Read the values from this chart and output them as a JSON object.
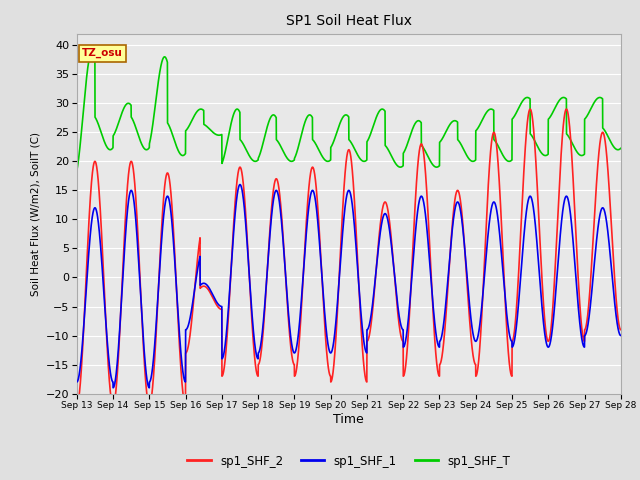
{
  "title": "SP1 Soil Heat Flux",
  "xlabel": "Time",
  "ylabel": "Soil Heat Flux (W/m2), SoilT (C)",
  "ylim": [
    -20,
    42
  ],
  "yticks": [
    -20,
    -15,
    -10,
    -5,
    0,
    5,
    10,
    15,
    20,
    25,
    30,
    35,
    40
  ],
  "xtick_labels": [
    "Sep 13",
    "Sep 14",
    "Sep 15",
    "Sep 16",
    "Sep 17",
    "Sep 18",
    "Sep 19",
    "Sep 20",
    "Sep 21",
    "Sep 22",
    "Sep 23",
    "Sep 24",
    "Sep 25",
    "Sep 26",
    "Sep 27",
    "Sep 28"
  ],
  "color_shf2": "#ff2222",
  "color_shf1": "#0000ee",
  "color_shft": "#00cc00",
  "line_width": 1.2,
  "fig_bg_color": "#e0e0e0",
  "plot_bg_color": "#e8e8e8",
  "grid_color": "#ffffff",
  "legend_labels": [
    "sp1_SHF_2",
    "sp1_SHF_1",
    "sp1_SHF_T"
  ],
  "tz_label": "TZ_osu",
  "tz_bg": "#ffff99",
  "tz_border": "#aa6600"
}
